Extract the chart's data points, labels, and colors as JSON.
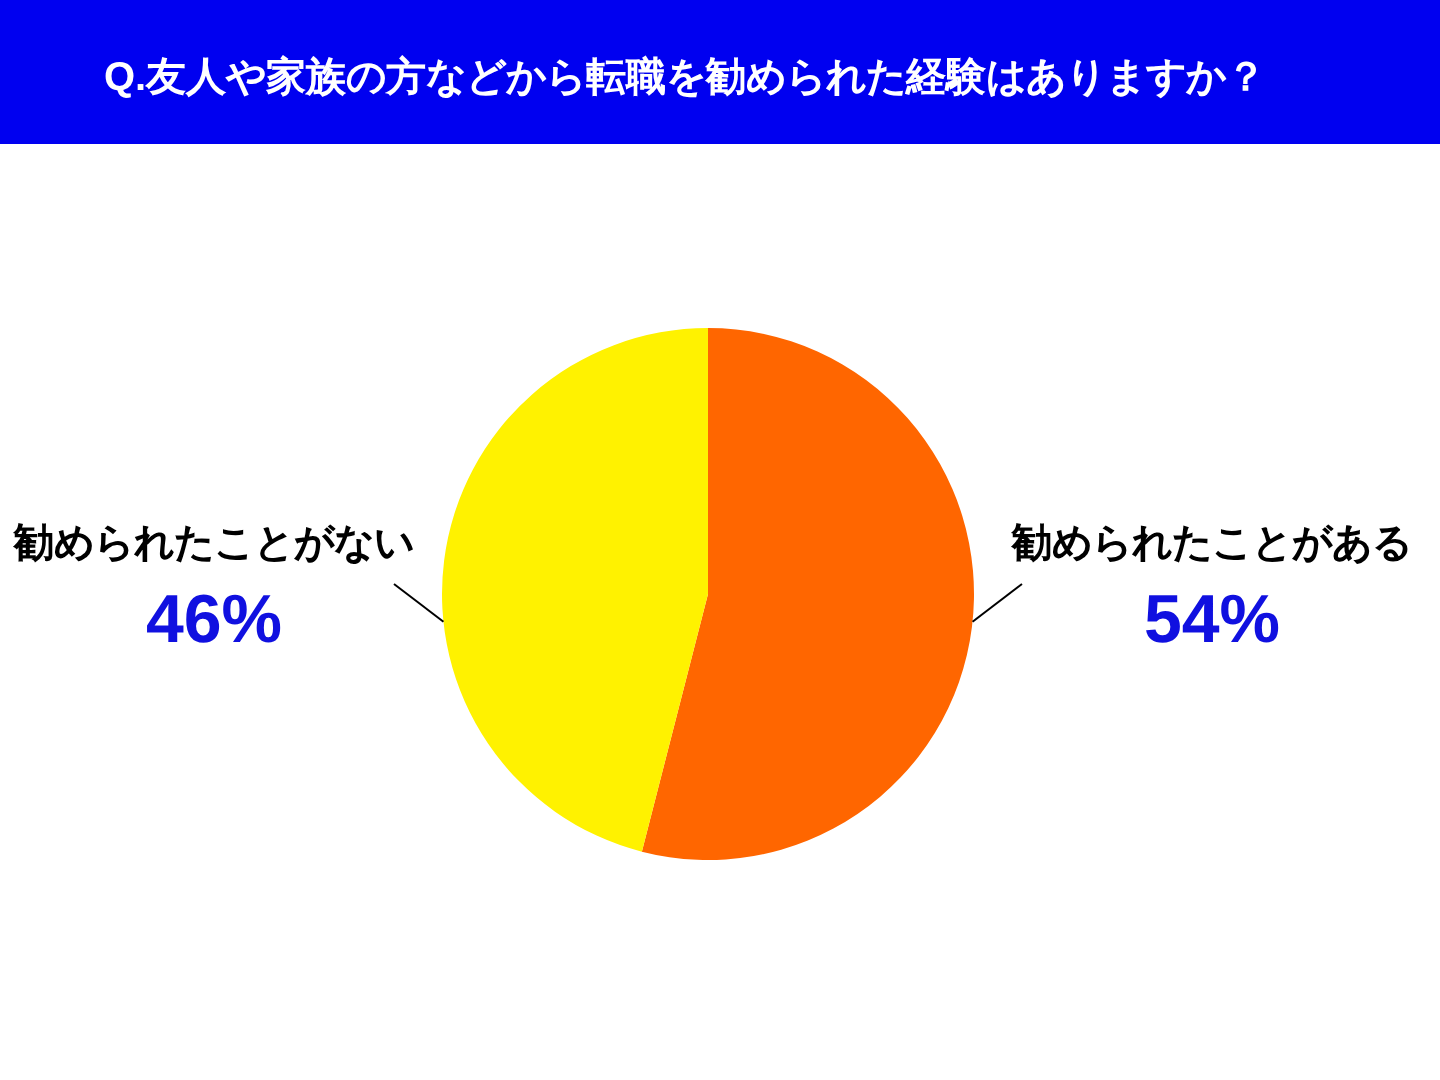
{
  "chart_data": {
    "type": "pie",
    "title": "Q.友人や家族の方などから転職を勧められた経験はありますか？",
    "categories": [
      "勧められたことがある",
      "勧められたことがない"
    ],
    "values": [
      54,
      46
    ],
    "colors": [
      "#ff6600",
      "#fff200"
    ],
    "value_labels": [
      "54%",
      "46%"
    ]
  }
}
